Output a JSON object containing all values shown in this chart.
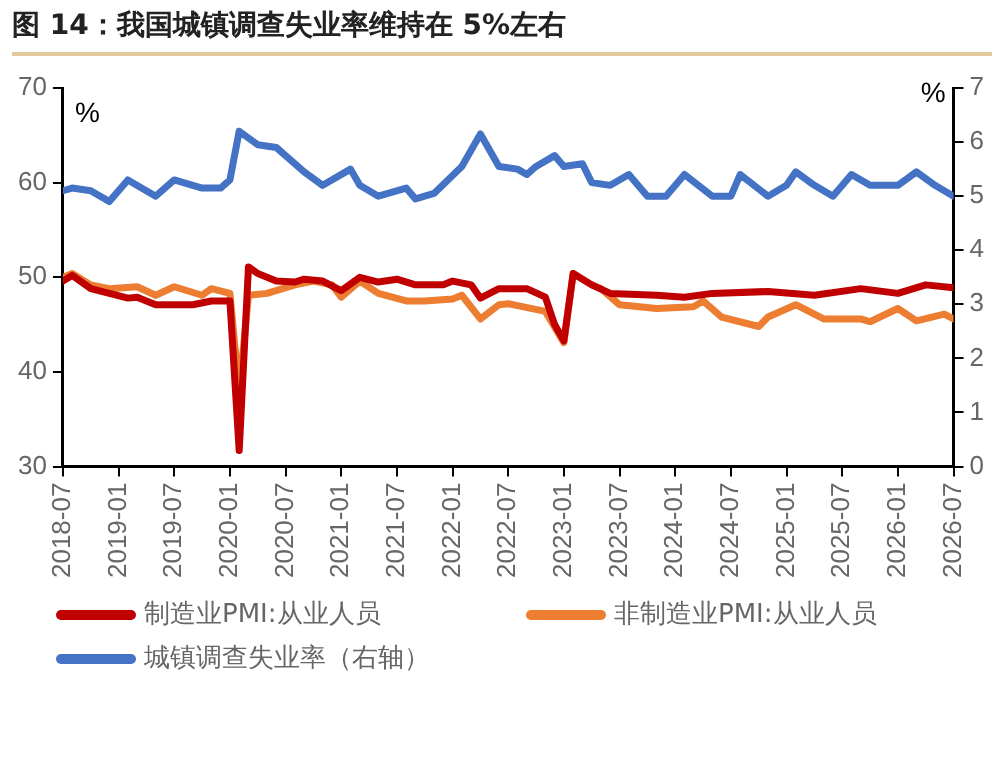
{
  "chart_data": {
    "type": "line",
    "title": "图 14：我国城镇调查失业率维持在 5%左右",
    "ylabel": "%",
    "y2label": "%",
    "xlim": [
      "2018-07",
      "2026-07"
    ],
    "xticks": [
      "2018-07",
      "2019-01",
      "2019-07",
      "2020-01",
      "2020-07",
      "2021-01",
      "2021-07",
      "2022-01",
      "2022-07",
      "2023-01",
      "2023-07",
      "2024-01",
      "2024-07",
      "2025-01",
      "2025-07",
      "2026-01",
      "2026-07"
    ],
    "ylim": [
      30,
      70
    ],
    "yticks": [
      30,
      40,
      50,
      60,
      70
    ],
    "y2lim": [
      0,
      7
    ],
    "y2ticks": [
      0,
      1,
      2,
      3,
      4,
      5,
      6,
      7
    ],
    "grid": false,
    "legend": "bottom",
    "marker": "none",
    "line_style": "solid",
    "series": [
      {
        "name": "制造业PMI:从业人员",
        "color": "#c00000",
        "x": [
          "2018-07",
          "2018-08",
          "2018-10",
          "2018-12",
          "2019-02",
          "2019-03",
          "2019-05",
          "2019-09",
          "2019-11",
          "2020-01",
          "2020-02",
          "2020-03",
          "2020-04",
          "2020-06",
          "2020-08",
          "2020-09",
          "2020-11",
          "2021-01",
          "2021-03",
          "2021-05",
          "2021-07",
          "2021-09",
          "2021-12",
          "2022-01",
          "2022-03",
          "2022-04",
          "2022-06",
          "2022-07",
          "2022-09",
          "2022-11",
          "2022-12",
          "2023-01",
          "2023-02",
          "2023-04",
          "2023-06",
          "2023-11",
          "2024-02",
          "2024-05",
          "2024-11",
          "2025-04",
          "2025-09",
          "2026-01",
          "2026-04",
          "2026-07"
        ],
        "values": [
          49.6,
          50.2,
          48.8,
          48.3,
          47.8,
          47.9,
          47.1,
          47.1,
          47.5,
          47.5,
          31.7,
          51.1,
          50.4,
          49.6,
          49.5,
          49.8,
          49.6,
          48.6,
          50.0,
          49.5,
          49.8,
          49.2,
          49.2,
          49.6,
          49.2,
          47.8,
          48.8,
          48.8,
          48.8,
          47.9,
          45.0,
          43.3,
          50.4,
          49.2,
          48.3,
          48.1,
          47.9,
          48.3,
          48.5,
          48.1,
          48.8,
          48.3,
          49.2,
          48.9
        ]
      },
      {
        "name": "非制造业PMI:从业人员",
        "color": "#ed7d31",
        "x": [
          "2018-07",
          "2018-08",
          "2018-10",
          "2018-12",
          "2019-03",
          "2019-05",
          "2019-07",
          "2019-10",
          "2019-11",
          "2020-01",
          "2020-02",
          "2020-03",
          "2020-05",
          "2020-08",
          "2020-10",
          "2020-12",
          "2021-01",
          "2021-03",
          "2021-05",
          "2021-08",
          "2021-10",
          "2022-01",
          "2022-02",
          "2022-04",
          "2022-06",
          "2022-07",
          "2022-08",
          "2022-11",
          "2023-01",
          "2023-02",
          "2023-04",
          "2023-05",
          "2023-07",
          "2023-11",
          "2024-03",
          "2024-04",
          "2024-06",
          "2024-10",
          "2024-11",
          "2025-02",
          "2025-05",
          "2025-09",
          "2025-10",
          "2026-01",
          "2026-03",
          "2026-06",
          "2026-07"
        ],
        "values": [
          50.0,
          50.4,
          49.2,
          48.8,
          49.0,
          48.1,
          49.0,
          48.1,
          48.8,
          48.3,
          37.9,
          48.1,
          48.3,
          49.2,
          49.6,
          49.2,
          47.9,
          49.6,
          48.3,
          47.5,
          47.5,
          47.7,
          48.1,
          45.6,
          47.1,
          47.2,
          47.0,
          46.4,
          43.1,
          50.4,
          49.2,
          48.8,
          47.1,
          46.7,
          46.9,
          47.5,
          45.8,
          44.8,
          45.8,
          47.1,
          45.6,
          45.6,
          45.3,
          46.7,
          45.4,
          46.1,
          45.6
        ]
      },
      {
        "name": "城镇调查失业率（右轴）",
        "color": "#4472c4",
        "axis": "y2",
        "x": [
          "2018-07",
          "2018-08",
          "2018-10",
          "2018-12",
          "2019-02",
          "2019-05",
          "2019-07",
          "2019-10",
          "2019-12",
          "2020-01",
          "2020-02",
          "2020-04",
          "2020-06",
          "2020-07",
          "2020-09",
          "2020-11",
          "2021-02",
          "2021-03",
          "2021-05",
          "2021-08",
          "2021-09",
          "2021-11",
          "2022-02",
          "2022-04",
          "2022-06",
          "2022-08",
          "2022-09",
          "2022-10",
          "2022-12",
          "2023-01",
          "2023-03",
          "2023-04",
          "2023-06",
          "2023-08",
          "2023-10",
          "2023-12",
          "2024-02",
          "2024-05",
          "2024-07",
          "2024-08",
          "2024-11",
          "2025-01",
          "2025-02",
          "2025-04",
          "2025-06",
          "2025-08",
          "2025-10",
          "2026-01",
          "2026-03",
          "2026-05",
          "2026-07"
        ],
        "values": [
          5.1,
          5.15,
          5.1,
          4.9,
          5.3,
          5.0,
          5.3,
          5.15,
          5.15,
          5.3,
          6.2,
          5.95,
          5.9,
          5.75,
          5.45,
          5.2,
          5.5,
          5.2,
          5.0,
          5.15,
          4.95,
          5.05,
          5.55,
          6.15,
          5.55,
          5.5,
          5.4,
          5.55,
          5.75,
          5.55,
          5.6,
          5.25,
          5.2,
          5.4,
          5.0,
          5.0,
          5.4,
          5.0,
          5.0,
          5.4,
          5.0,
          5.2,
          5.45,
          5.2,
          5.0,
          5.4,
          5.2,
          5.2,
          5.45,
          5.2,
          5.0
        ]
      }
    ]
  }
}
